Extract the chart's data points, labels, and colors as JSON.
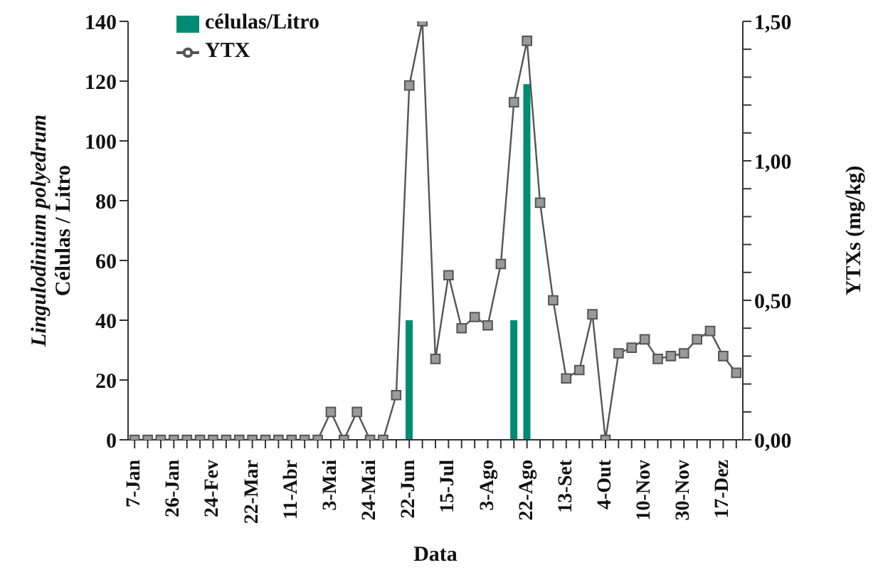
{
  "chart_data": {
    "type": "bar",
    "xlabel": "Data",
    "ylabel": "Lingulodinium polyedrum\nCélulas / Litro",
    "y2label": "YTXs (mg/kg)",
    "categories": [
      "7-Jan",
      null,
      null,
      "26-Jan",
      null,
      null,
      "24-Fev",
      null,
      null,
      "22-Mar",
      null,
      null,
      "11-Abr",
      null,
      null,
      "3-Mai",
      null,
      null,
      "24-Mai",
      null,
      null,
      "22-Jun",
      null,
      null,
      "15-Jul",
      null,
      null,
      "3-Ago",
      null,
      null,
      "22-Ago",
      null,
      null,
      "13-Set",
      null,
      null,
      "4-Out",
      null,
      null,
      "10-Nov",
      null,
      null,
      "30-Nov",
      null,
      null,
      "17-Dez",
      null
    ],
    "series": [
      {
        "name": "células/Litro",
        "color": "#008c74",
        "values": [
          0,
          0,
          0,
          0,
          0,
          0,
          0,
          0,
          0,
          0,
          0,
          0,
          0,
          0,
          0,
          0,
          0,
          0,
          0,
          0,
          0,
          40,
          0,
          0,
          0,
          0,
          0,
          0,
          0,
          40,
          119,
          0,
          0,
          0,
          0,
          0,
          0,
          0,
          0,
          0,
          0,
          0,
          0,
          0,
          0,
          0,
          0
        ]
      },
      {
        "name": "YTX",
        "type": "line",
        "axis": "y2",
        "color": "#555555",
        "values": [
          0,
          0,
          0,
          0,
          0,
          0,
          0,
          0,
          0,
          0,
          0,
          0,
          0,
          0,
          0,
          0.1,
          0,
          0.1,
          0,
          0,
          0.16,
          1.27,
          1.5,
          0.29,
          0.59,
          0.4,
          0.44,
          0.41,
          0.63,
          1.21,
          1.43,
          0.85,
          0.5,
          0.22,
          0.25,
          0.45,
          0,
          0.31,
          0.33,
          0.36,
          0.29,
          0.3,
          0.31,
          0.36,
          0.39,
          0.3,
          0.24
        ]
      }
    ],
    "ylim": [
      0,
      140
    ],
    "yticks": [
      0,
      20,
      40,
      60,
      80,
      100,
      120,
      140
    ],
    "y2lim": [
      0,
      1.5
    ],
    "y2ticks": [
      {
        "value": 0,
        "label": "0,00"
      },
      {
        "value": 0.1,
        "label": null
      },
      {
        "value": 0.2,
        "label": null
      },
      {
        "value": 0.3,
        "label": null
      },
      {
        "value": 0.4,
        "label": null
      },
      {
        "value": 0.5,
        "label": "0,50"
      },
      {
        "value": 0.6,
        "label": null
      },
      {
        "value": 0.7,
        "label": null
      },
      {
        "value": 0.8,
        "label": null
      },
      {
        "value": 0.9,
        "label": null
      },
      {
        "value": 1,
        "label": "1,00"
      },
      {
        "value": 1.1,
        "label": null
      },
      {
        "value": 1.2,
        "label": null
      },
      {
        "value": 1.3,
        "label": null
      },
      {
        "value": 1.4,
        "label": null
      },
      {
        "value": 1.5,
        "label": "1,50"
      }
    ],
    "legend": "top left",
    "marker": "square",
    "line_style": "solid"
  }
}
